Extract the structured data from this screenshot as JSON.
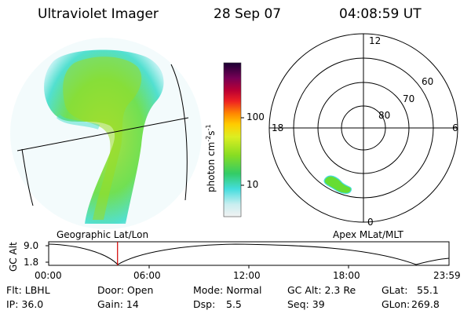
{
  "header": {
    "instrument": "Ultraviolet Imager",
    "date": "28 Sep 07",
    "time": "04:08:59 UT"
  },
  "colorbar": {
    "axis_label": "photon cm",
    "exp1": "-2",
    "unit_s": "s",
    "exp2": "-1",
    "ticks": [
      "100",
      "10"
    ]
  },
  "left_panel": {
    "title": "Geographic Lat/Lon"
  },
  "polar_panel": {
    "title": "Apex MLat/MLT",
    "mlt_labels": {
      "top": "12",
      "left": "18",
      "right": "6",
      "bottom": "0"
    },
    "lat_labels": [
      "60",
      "70",
      "80"
    ]
  },
  "timeline": {
    "ylabel": "GC Alt",
    "y_ticks": [
      "9.0",
      "1.8"
    ],
    "x_ticks": [
      "00:00",
      "06:00",
      "12:00",
      "18:00",
      "23:59"
    ],
    "current_time_fraction": 0.172
  },
  "info": {
    "flt": "Flt: LBHL",
    "ip": "IP: 36.0",
    "door": "Door: Open",
    "gain": "Gain: 14",
    "mode": "Mode: Normal",
    "dsp_label": "Dsp:",
    "dsp_value": "5.5",
    "gc_alt": "GC Alt: 2.3 Re",
    "seq": "Seq: 39",
    "glat_label": "GLat:",
    "glat_value": "55.1",
    "glon_label": "GLon:",
    "glon_value": "269.8"
  },
  "colors": {
    "timeline_marker": "#d40000",
    "aurora_green": "#66dd33",
    "aurora_cyan": "#44dddd"
  }
}
